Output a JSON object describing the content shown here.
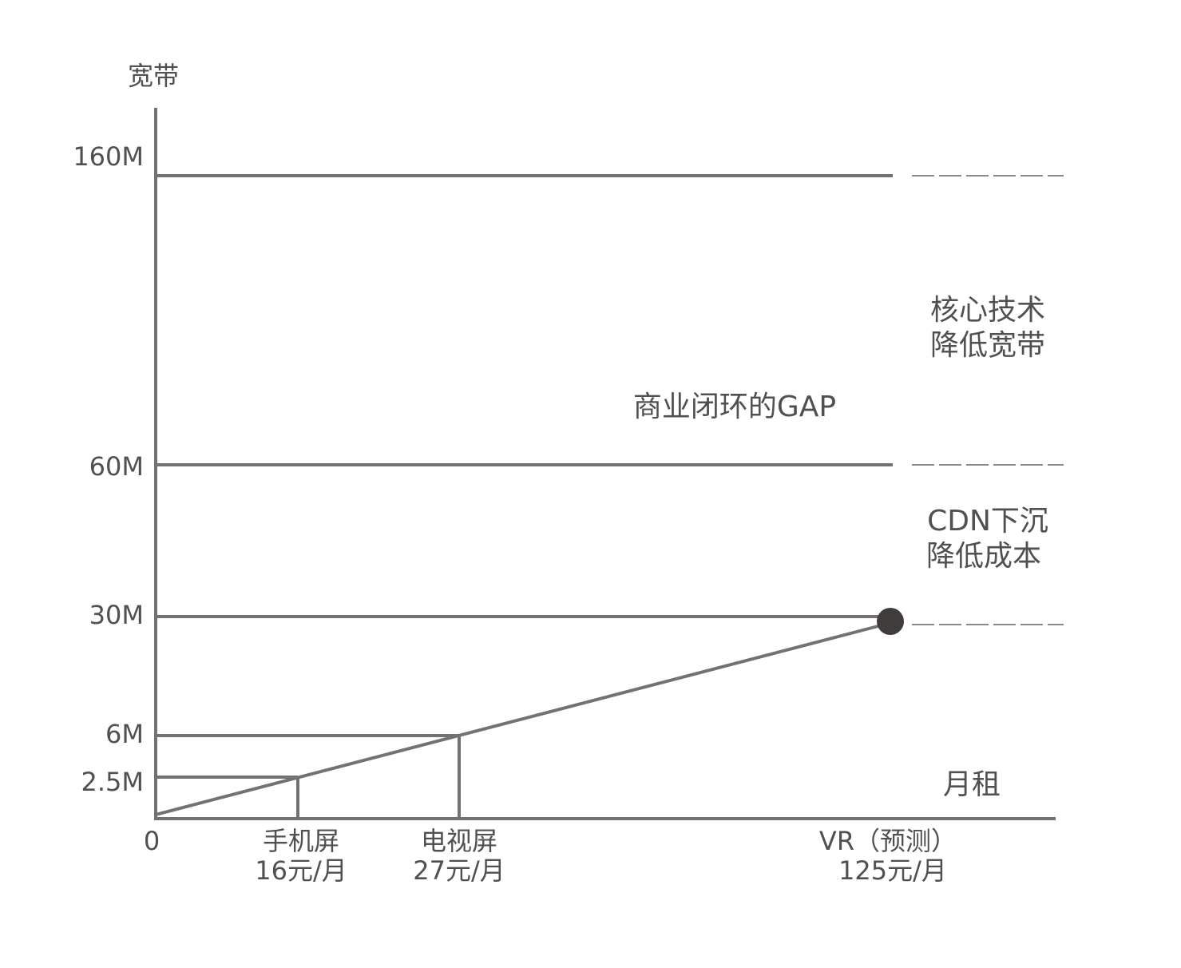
{
  "y_axis": {
    "title": "宽带",
    "ticks": [
      "160M",
      "60M",
      "30M",
      "6M",
      "2.5M"
    ]
  },
  "x_axis": {
    "origin": "0",
    "title": "月租",
    "ticks": [
      {
        "name": "手机屏",
        "price": "16元/月"
      },
      {
        "name": "电视屏",
        "price": "27元/月"
      },
      {
        "name": "VR（预测）",
        "price": "125元/月"
      }
    ]
  },
  "annotations": {
    "gap": "商业闭环的GAP",
    "tech": [
      "核心技术",
      "降低宽带"
    ],
    "cdn": [
      "CDN下沉",
      "降低成本"
    ]
  }
}
